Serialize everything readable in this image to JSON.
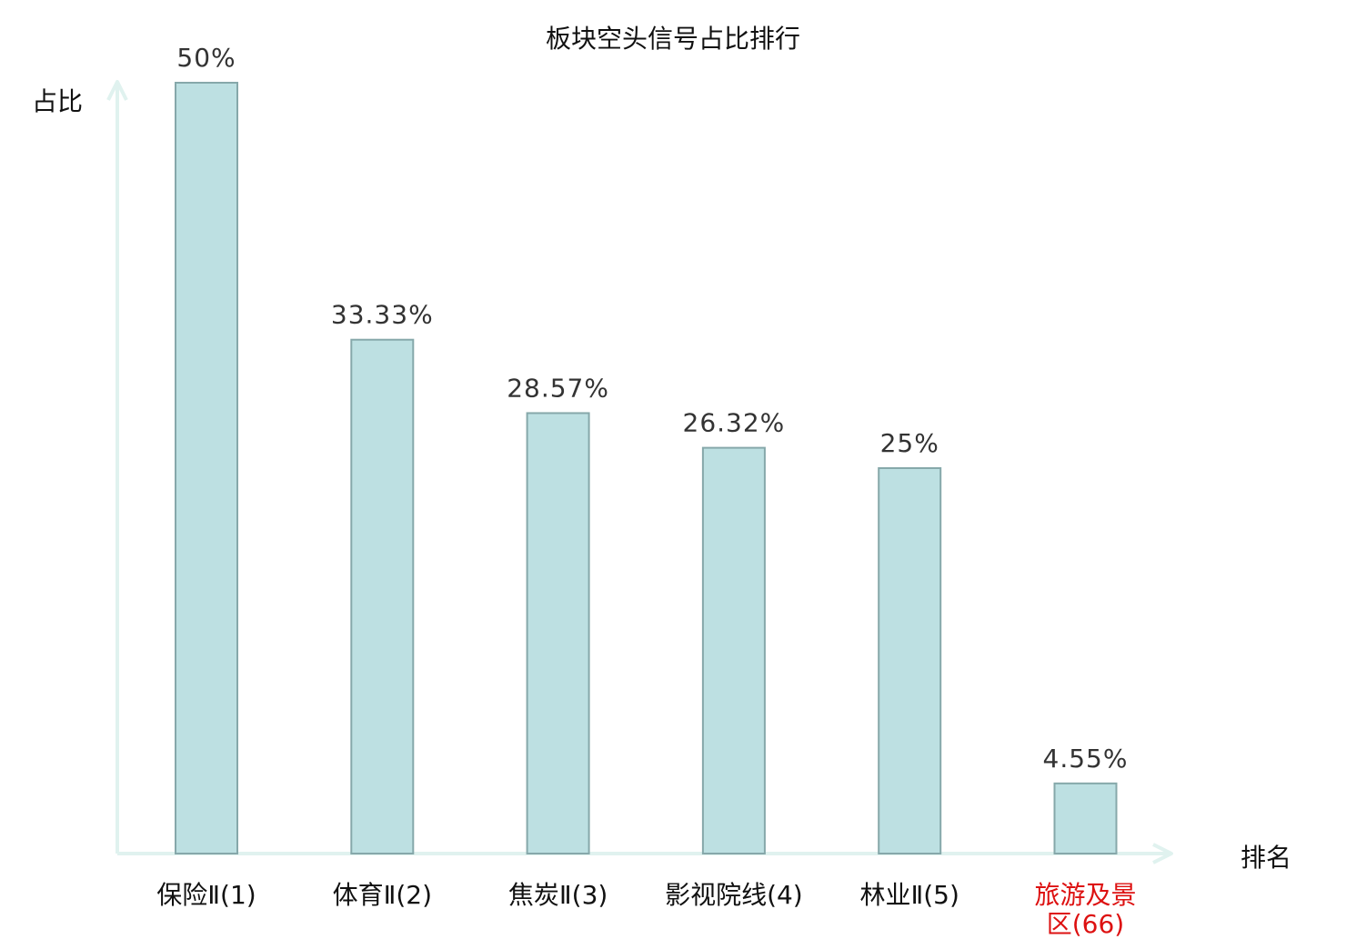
{
  "chart_data": {
    "type": "bar",
    "title": "板块空头信号占比排行",
    "xlabel": "排名",
    "ylabel": "占比",
    "categories": [
      [
        "保险Ⅱ(1)"
      ],
      [
        "体育Ⅱ(2)"
      ],
      [
        "焦炭Ⅱ(3)"
      ],
      [
        "影视院线(4)"
      ],
      [
        "林业Ⅱ(5)"
      ],
      [
        "旅游及景",
        "区(66)"
      ]
    ],
    "values": [
      50,
      33.33,
      28.57,
      26.32,
      25,
      4.55
    ],
    "value_labels": [
      "50%",
      "33.33%",
      "28.57%",
      "26.32%",
      "25%",
      "4.55%"
    ],
    "ylim": [
      0,
      50
    ],
    "grid": false,
    "highlight_index": 5,
    "colors": {
      "bar_fill": "#bde0e2",
      "bar_stroke": "#86a8aa",
      "axis": "#e0f2ef",
      "text": "#111111",
      "value_text": "#333333",
      "highlight_text": "#dd1111"
    }
  }
}
